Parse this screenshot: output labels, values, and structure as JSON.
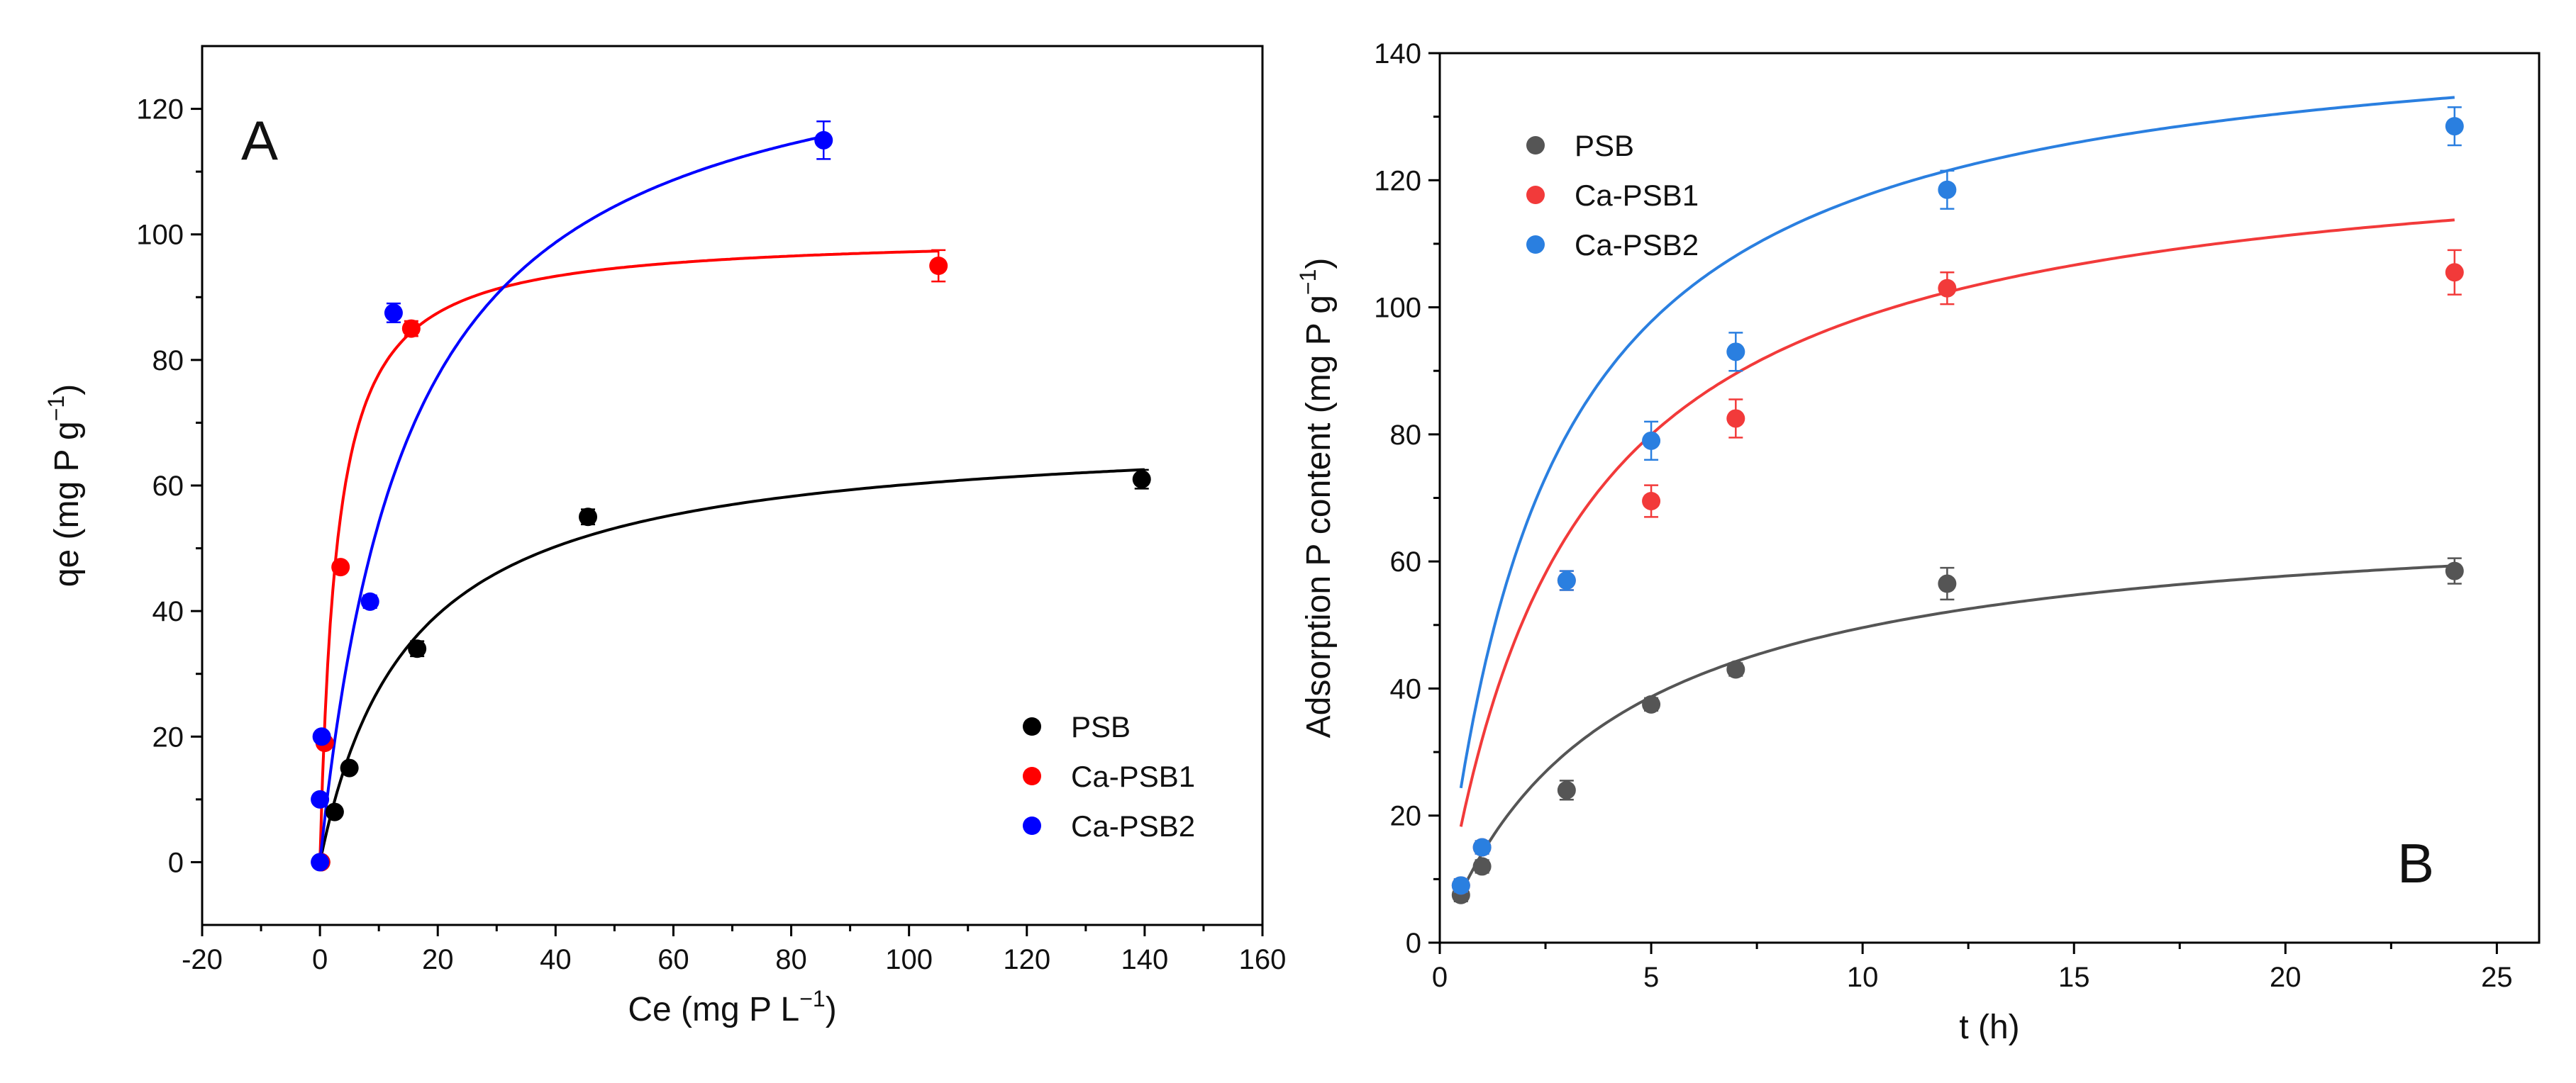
{
  "chart_data": [
    {
      "type": "scatter",
      "panel_label": "A",
      "xlabel": "Ce (mg P L",
      "xlabel_sup": "−1",
      "xlabel_end": ")",
      "ylabel": "qe (mg P g",
      "ylabel_sup": "−1",
      "ylabel_end": ")",
      "xlim": [
        -20,
        160
      ],
      "ylim": [
        -10,
        130
      ],
      "xticks": [
        -20,
        0,
        20,
        40,
        60,
        80,
        100,
        120,
        140,
        160
      ],
      "yticks": [
        0,
        20,
        40,
        60,
        80,
        100,
        120
      ],
      "legend_position": "bottom-right",
      "series": [
        {
          "name": "PSB",
          "color": "#000000",
          "x": [
            0.2,
            2.5,
            5,
            16.5,
            45.5,
            139.5
          ],
          "y": [
            0,
            8,
            15,
            34,
            55,
            61
          ],
          "err": [
            0,
            0,
            0,
            1.2,
            1.2,
            1.5
          ],
          "fit": {
            "model": "langmuir",
            "qmax": 69.3,
            "K": 0.066,
            "x_range": [
              0,
              140
            ]
          }
        },
        {
          "name": "Ca-PSB1",
          "color": "#ff0000",
          "x": [
            0.2,
            0.8,
            3.5,
            15.5,
            105
          ],
          "y": [
            0,
            19,
            47,
            85,
            95
          ],
          "err": [
            0,
            0,
            0,
            1.2,
            2.5
          ],
          "fit": {
            "model": "langmuir",
            "qmax": 100.0,
            "K": 0.35,
            "x_range": [
              0,
              105
            ]
          }
        },
        {
          "name": "Ca-PSB2",
          "color": "#0000ff",
          "x": [
            0,
            0,
            0.3,
            8.5,
            12.5,
            85.5
          ],
          "y": [
            0,
            10,
            20,
            41.5,
            87.5,
            115
          ],
          "err": [
            0,
            0,
            0,
            1.0,
            1.5,
            3.0
          ],
          "fit": {
            "model": "langmuir",
            "qmax": 136.1,
            "K": 0.066,
            "x_range": [
              0,
              86
            ]
          }
        }
      ]
    },
    {
      "type": "scatter",
      "panel_label": "B",
      "xlabel": "t (h)",
      "ylabel": "Adsorption P content (mg P g",
      "ylabel_sup": "−1",
      "ylabel_end": ")",
      "xlim": [
        0,
        26
      ],
      "ylim": [
        0,
        140
      ],
      "xticks": [
        0,
        5,
        10,
        15,
        20,
        25
      ],
      "yticks": [
        0,
        20,
        40,
        60,
        80,
        100,
        120,
        140
      ],
      "legend_position": "top-left",
      "series": [
        {
          "name": "PSB",
          "color": "#555555",
          "x": [
            0.5,
            1,
            3,
            5,
            7,
            12,
            24
          ],
          "y": [
            7.5,
            12,
            24,
            37.5,
            43,
            56.5,
            58.5
          ],
          "err": [
            1.0,
            1.0,
            1.5,
            1.0,
            1.0,
            2.5,
            2.0
          ],
          "fit": {
            "model": "pseudo-second-order",
            "qe": 69.0,
            "k": 0.0037,
            "x_range": [
              0.5,
              24
            ]
          }
        },
        {
          "name": "Ca-PSB1",
          "color": "#f23a3a",
          "x": [
            0.5,
            1,
            3,
            5,
            7,
            12,
            24
          ],
          "y": [
            9,
            15,
            57,
            69.5,
            82.5,
            103,
            105.5
          ],
          "err": [
            1.0,
            1.0,
            1.5,
            2.5,
            3.0,
            2.5,
            3.5
          ],
          "fit": {
            "model": "pseudo-second-order",
            "qe": 128.0,
            "k": 0.0026,
            "x_range": [
              0.5,
              24
            ]
          }
        },
        {
          "name": "Ca-PSB2",
          "color": "#2a7fe0",
          "x": [
            0.5,
            1,
            3,
            5,
            7,
            12,
            24
          ],
          "y": [
            9,
            15,
            57,
            79,
            93,
            118.5,
            128.5
          ],
          "err": [
            1.0,
            1.0,
            1.5,
            3.0,
            3.0,
            3.0,
            3.0
          ],
          "fit": {
            "model": "pseudo-second-order",
            "qe": 147.0,
            "k": 0.0027,
            "x_range": [
              0.5,
              24
            ]
          }
        }
      ]
    }
  ]
}
